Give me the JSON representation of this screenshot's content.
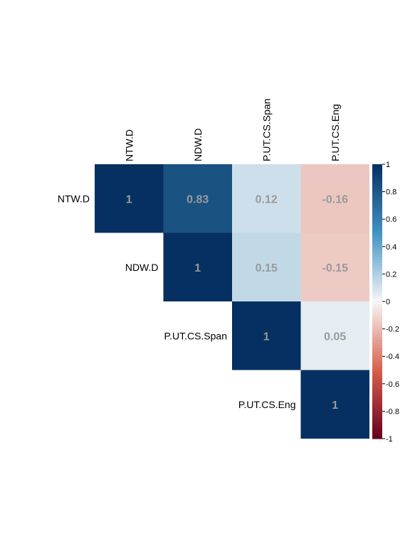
{
  "chart_data": {
    "type": "heatmap",
    "subtype": "correlation-upper-triangle",
    "variables": [
      "NTW.D",
      "NDW.D",
      "P.UT.CS.Span",
      "P.UT.CS.Eng"
    ],
    "matrix": [
      [
        1,
        0.83,
        0.12,
        -0.16
      ],
      [
        null,
        1,
        0.15,
        -0.15
      ],
      [
        null,
        null,
        1,
        0.05
      ],
      [
        null,
        null,
        null,
        1
      ]
    ],
    "cell_labels": [
      [
        "1",
        "0.83",
        "0.12",
        "-0.16"
      ],
      [
        null,
        "1",
        "0.15",
        "-0.15"
      ],
      [
        null,
        null,
        "1",
        "0.05"
      ],
      [
        null,
        null,
        null,
        "1"
      ]
    ],
    "colorbar": {
      "range": [
        -1,
        1
      ],
      "ticks": [
        1,
        0.8,
        0.6,
        0.4,
        0.2,
        0,
        -0.2,
        -0.4,
        -0.6,
        -0.8,
        -1
      ],
      "tick_labels": [
        "1",
        "0.8",
        "0.6",
        "0.4",
        "0.2",
        "0",
        "-0.2",
        "-0.4",
        "-0.6",
        "-0.8",
        "-1"
      ],
      "colors": {
        "positive_max": "#053061",
        "positive_mid": "#4393c3",
        "neutral": "#f7f7f7",
        "negative_mid": "#d6604d",
        "negative_max": "#67001f"
      }
    },
    "label_color": "#9a9a9a"
  }
}
